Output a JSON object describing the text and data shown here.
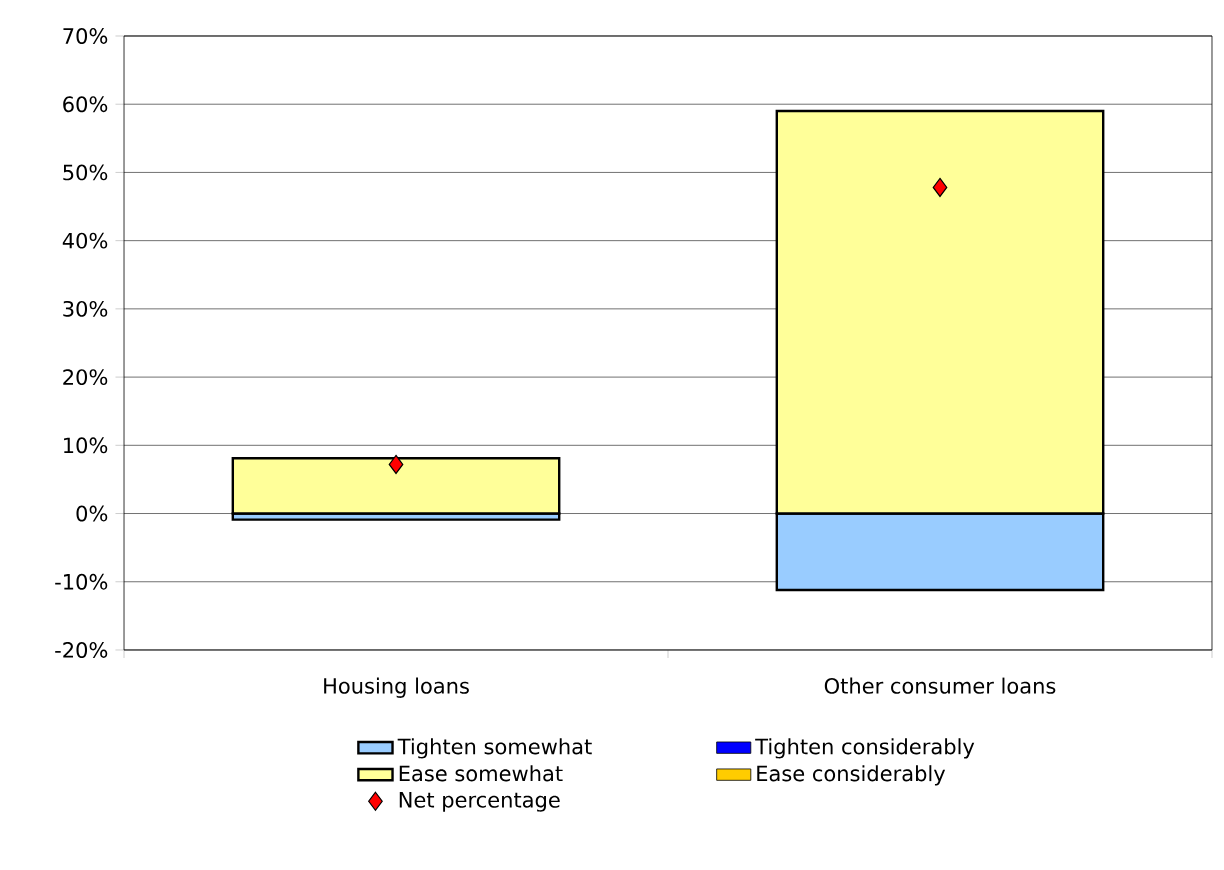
{
  "chart_data": {
    "type": "bar",
    "stacked": true,
    "categories": [
      "Housing loans",
      "Other consumer loans"
    ],
    "series": [
      {
        "name": "Tighten somewhat",
        "color": "#99ccff",
        "values": [
          -0.9,
          -11.2
        ]
      },
      {
        "name": "Tighten considerably",
        "color": "#0000ff",
        "values": [
          0,
          0
        ]
      },
      {
        "name": "Ease somewhat",
        "color": "#ffff99",
        "values": [
          8.1,
          59
        ]
      },
      {
        "name": "Ease considerably",
        "color": "#ffcc00",
        "values": [
          0,
          0
        ]
      },
      {
        "name": "Net percentage",
        "type": "scatter",
        "marker": "diamond",
        "color": "#ff0000",
        "values": [
          7.2,
          47.8
        ]
      }
    ],
    "ylim": [
      -20,
      70
    ],
    "yticks": [
      {
        "value": -20,
        "label": "-20%"
      },
      {
        "value": -10,
        "label": "-10%"
      },
      {
        "value": 0,
        "label": "0%"
      },
      {
        "value": 10,
        "label": "10%"
      },
      {
        "value": 20,
        "label": "20%"
      },
      {
        "value": 30,
        "label": "30%"
      },
      {
        "value": 40,
        "label": "40%"
      },
      {
        "value": 50,
        "label": "50%"
      },
      {
        "value": 60,
        "label": "60%"
      },
      {
        "value": 70,
        "label": "70%"
      }
    ],
    "grid": "y",
    "legend": "bottom"
  }
}
